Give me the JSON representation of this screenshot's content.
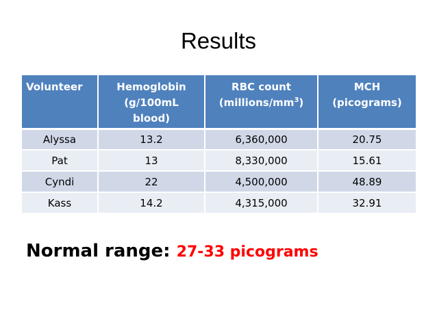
{
  "slide": {
    "title": "Results"
  },
  "table": {
    "headers": [
      {
        "line1": "Volunteer",
        "line2": "",
        "line3": ""
      },
      {
        "line1": "Hemoglobin",
        "line2": "(g/100mL",
        "line3": "blood)"
      },
      {
        "line1": "RBC count",
        "line2_pre": "(millions/mm",
        "line2_sup": "3",
        "line2_post": ")"
      },
      {
        "line1": "MCH",
        "line2": "(picograms)"
      }
    ],
    "rows": [
      {
        "volunteer": "Alyssa",
        "hemoglobin": "13.2",
        "rbc": "6,360,000",
        "mch": "20.75"
      },
      {
        "volunteer": "Pat",
        "hemoglobin": "13",
        "rbc": "8,330,000",
        "mch": "15.61"
      },
      {
        "volunteer": "Cyndi",
        "hemoglobin": "22",
        "rbc": "4,500,000",
        "mch": "48.89"
      },
      {
        "volunteer": "Kass",
        "hemoglobin": "14.2",
        "rbc": "4,315,000",
        "mch": "32.91"
      }
    ]
  },
  "normal_range": {
    "label": "Normal range:",
    "value": "27-33 picograms"
  },
  "colors": {
    "header_bg": "#4f81bd",
    "row_odd_bg": "#d0d8e8",
    "row_even_bg": "#e9edf4",
    "highlight": "#ff0000"
  }
}
